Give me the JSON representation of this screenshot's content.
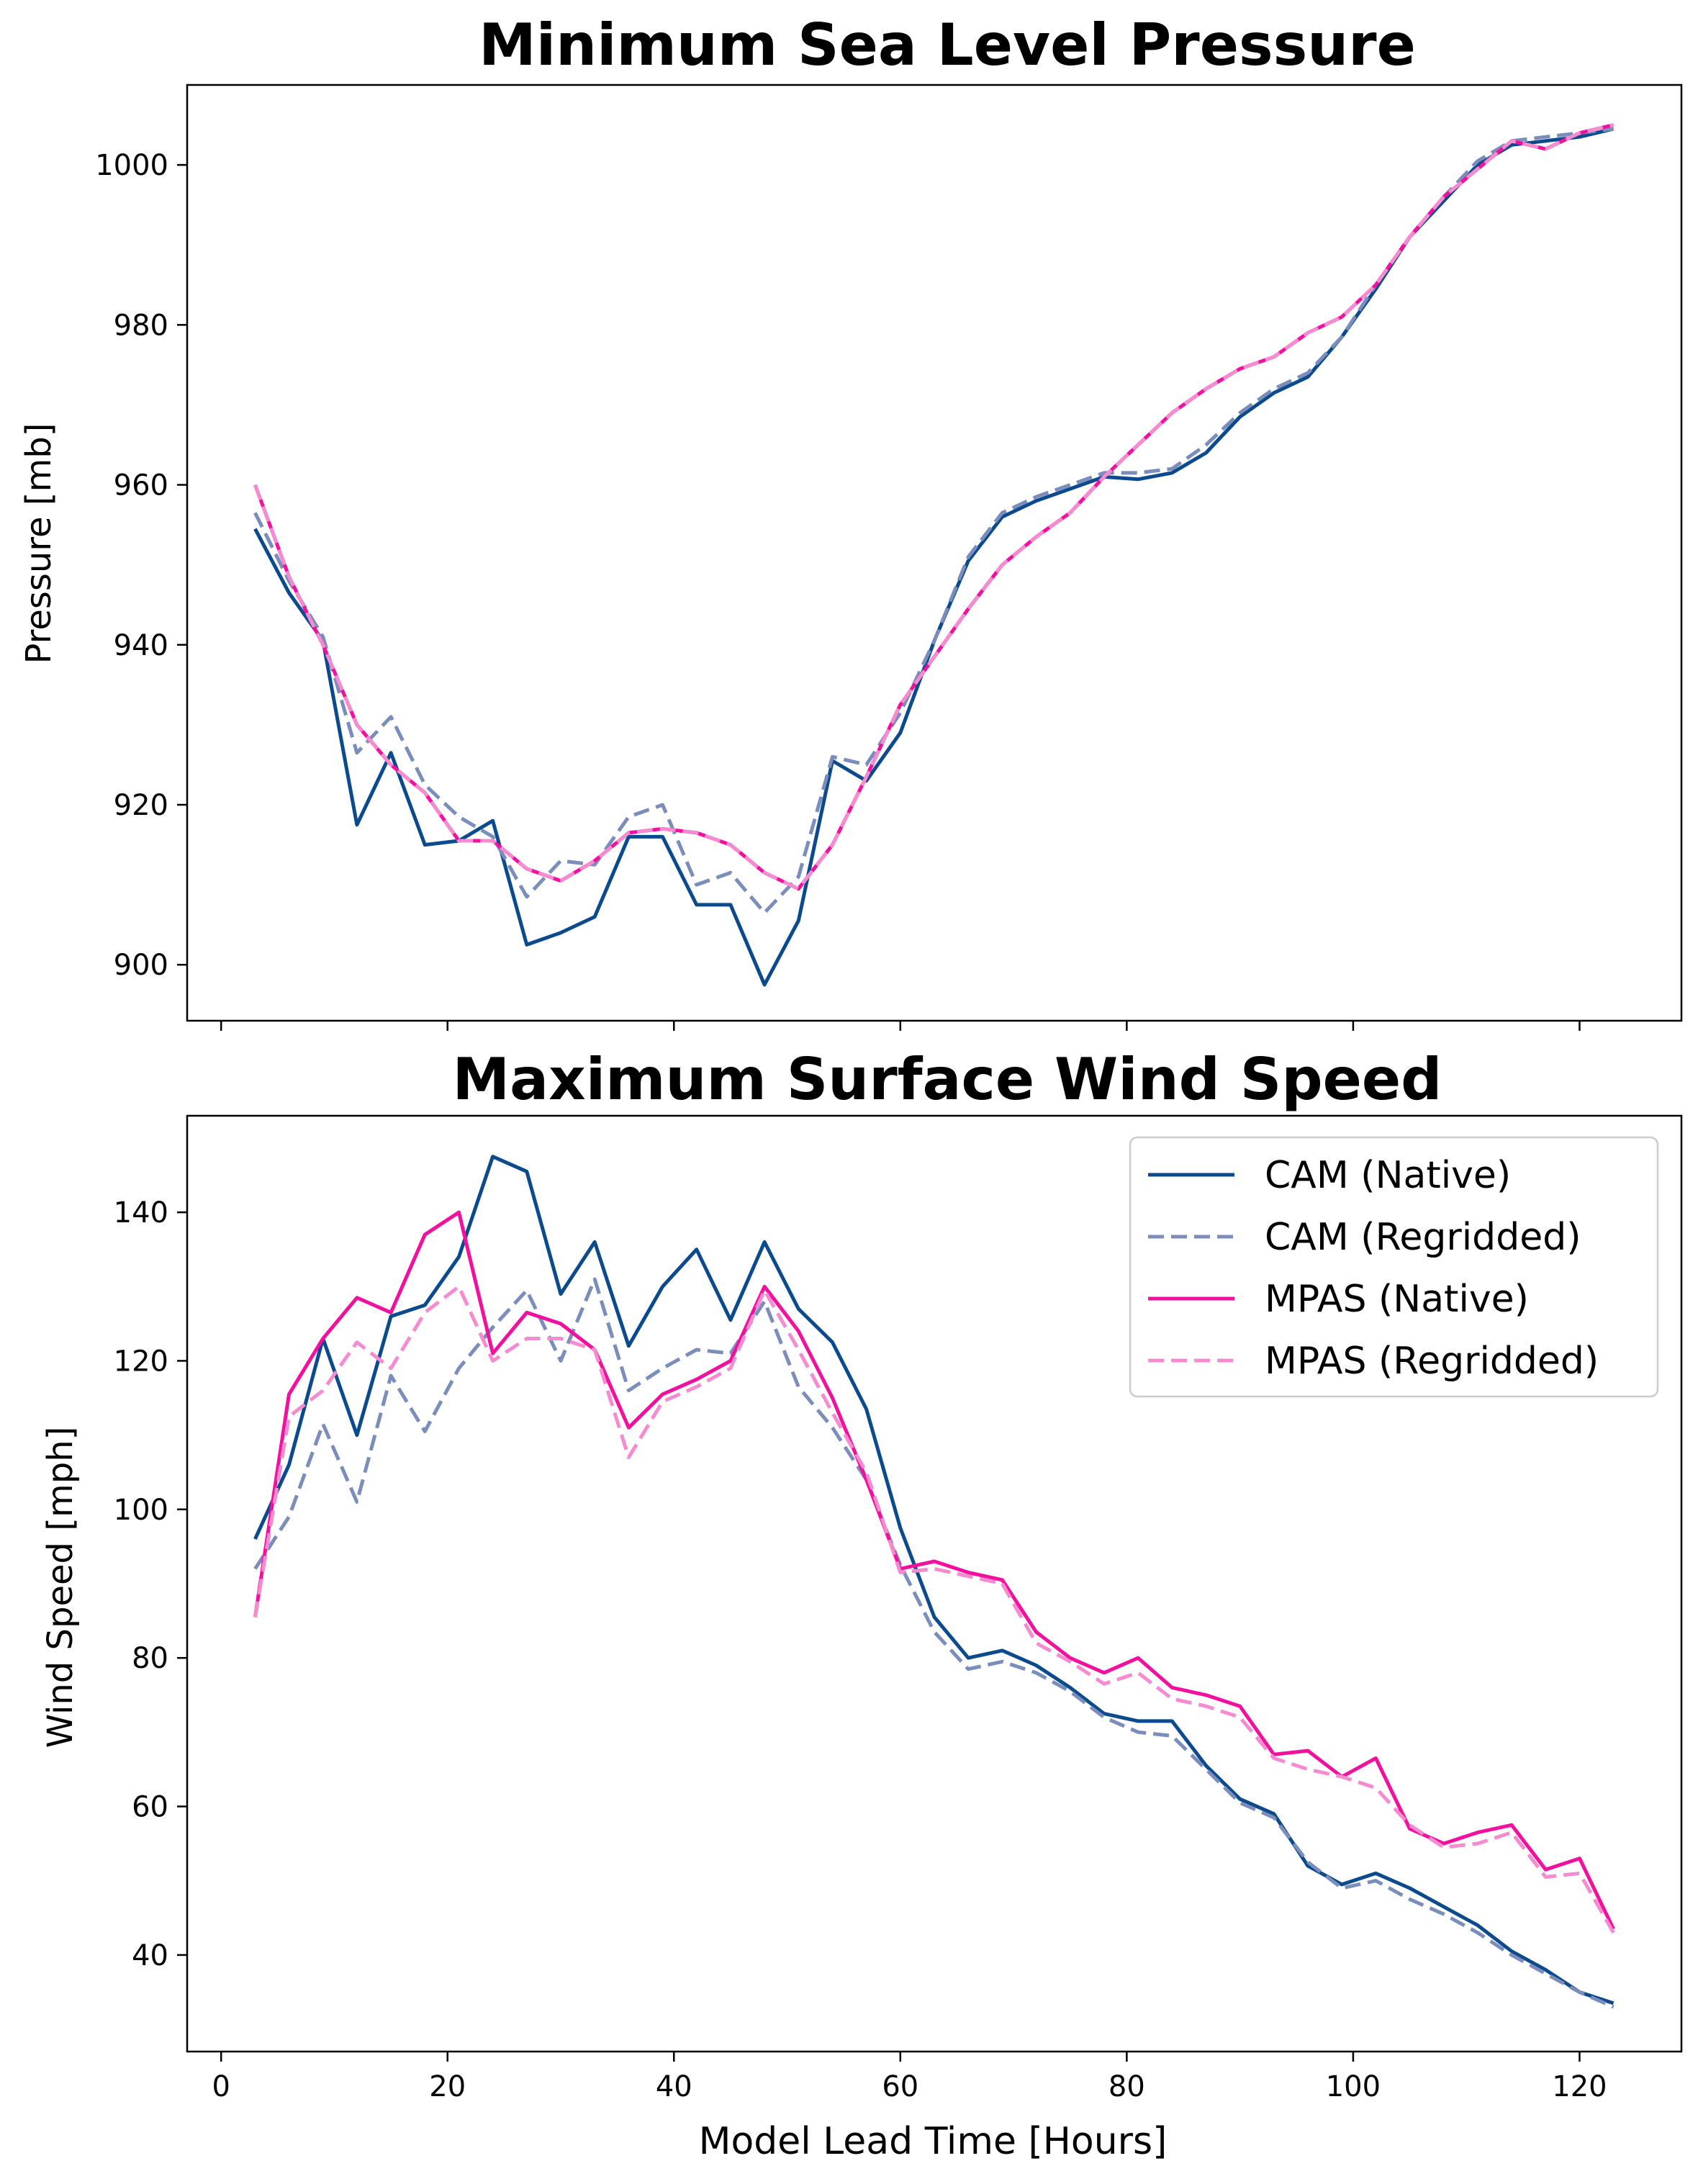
{
  "colors": {
    "cam_native": "#0b4a8c",
    "cam_regridded": "#7a8dbb",
    "mpas_native": "#f2109f",
    "mpas_regridded": "#f58bd0"
  },
  "chart_data": [
    {
      "type": "line",
      "title": "Minimum Sea Level Pressure",
      "xlabel": "",
      "ylabel": "Pressure [mb]",
      "xlim": [
        -3,
        129
      ],
      "ylim": [
        893,
        1010
      ],
      "grid": false,
      "x_ticks": [
        0,
        20,
        40,
        60,
        80,
        100,
        120
      ],
      "y_ticks": [
        900,
        920,
        940,
        960,
        980,
        1000
      ],
      "y_tick_labels": [
        "900",
        "920",
        "940",
        "960",
        "980",
        "1000"
      ],
      "x": [
        3,
        6,
        9,
        12,
        15,
        18,
        21,
        24,
        27,
        30,
        33,
        36,
        39,
        42,
        45,
        48,
        51,
        54,
        57,
        60,
        63,
        66,
        69,
        72,
        75,
        78,
        81,
        84,
        87,
        90,
        93,
        96,
        99,
        102,
        105,
        108,
        111,
        114,
        117,
        120,
        123
      ],
      "series": [
        {
          "name": "CAM (Native)",
          "style": "solid",
          "color_key": "cam_native",
          "values": [
            954.5,
            946.5,
            940.5,
            917.5,
            926.5,
            915,
            915.5,
            918,
            902.5,
            904,
            906,
            916,
            916,
            907.5,
            907.5,
            897.5,
            905.5,
            925.5,
            923,
            929,
            940.5,
            950.5,
            956,
            958,
            959.5,
            961,
            960.7,
            961.5,
            964,
            968.5,
            971.5,
            973.5,
            978.5,
            984.5,
            991,
            995.5,
            1000,
            1002.5,
            1003,
            1003.5,
            1004.5
          ]
        },
        {
          "name": "CAM (Regridded)",
          "style": "dashed",
          "color_key": "cam_regridded",
          "values": [
            956.5,
            948,
            941,
            926.5,
            931,
            922.5,
            918.5,
            916,
            908.5,
            913,
            912.5,
            918.5,
            920,
            910,
            911.5,
            906.5,
            911,
            926,
            925,
            931.5,
            940.5,
            951,
            956.5,
            958.5,
            960,
            961.5,
            961.5,
            962,
            965,
            969,
            972,
            974,
            978.5,
            985,
            991,
            996,
            1000.5,
            1003,
            1003.5,
            1004,
            1004.5
          ]
        },
        {
          "name": "MPAS (Native)",
          "style": "solid",
          "color_key": "mpas_native",
          "values": [
            960,
            948.5,
            940,
            930,
            925,
            921.5,
            915.5,
            915.5,
            912,
            910.5,
            913,
            916.5,
            917,
            916.5,
            915,
            911.5,
            909.5,
            915,
            923.5,
            932.5,
            938.5,
            944.5,
            950,
            953.5,
            956.5,
            961,
            965,
            969,
            972,
            974.5,
            976,
            979,
            981,
            985,
            991,
            996,
            999.5,
            1003,
            1002,
            1004,
            1005
          ]
        },
        {
          "name": "MPAS (Regridded)",
          "style": "dashed",
          "color_key": "mpas_regridded",
          "values": [
            960,
            948.5,
            940,
            930,
            925,
            921.5,
            915.5,
            915.5,
            912,
            910.5,
            913,
            916.5,
            917,
            916.5,
            915,
            911.5,
            909.5,
            915,
            923.5,
            932.5,
            938.5,
            944.5,
            950,
            953.5,
            956.5,
            961,
            965,
            969,
            972,
            974.5,
            976,
            979,
            981,
            985,
            991,
            996,
            999.5,
            1003,
            1002,
            1004,
            1005
          ]
        }
      ]
    },
    {
      "type": "line",
      "title": "Maximum Surface Wind Speed",
      "xlabel": "Model Lead Time [Hours]",
      "ylabel": "Wind Speed [mph]",
      "xlim": [
        -3,
        129
      ],
      "ylim": [
        27,
        153
      ],
      "grid": false,
      "legend": "top-right",
      "x_ticks": [
        0,
        20,
        40,
        60,
        80,
        100,
        120
      ],
      "x_tick_labels": [
        "0",
        "20",
        "40",
        "60",
        "80",
        "100",
        "120"
      ],
      "y_ticks": [
        40,
        60,
        80,
        100,
        120,
        140
      ],
      "y_tick_labels": [
        "40",
        "60",
        "80",
        "100",
        "120",
        "140"
      ],
      "x": [
        3,
        6,
        9,
        12,
        15,
        18,
        21,
        24,
        27,
        30,
        33,
        36,
        39,
        42,
        45,
        48,
        51,
        54,
        57,
        60,
        63,
        66,
        69,
        72,
        75,
        78,
        81,
        84,
        87,
        90,
        93,
        96,
        99,
        102,
        105,
        108,
        111,
        114,
        117,
        120,
        123
      ],
      "series": [
        {
          "name": "CAM (Native)",
          "style": "solid",
          "color_key": "cam_native",
          "values": [
            96,
            106,
            123,
            110,
            126,
            127.5,
            134,
            147.5,
            145.5,
            129,
            136,
            122,
            130,
            135,
            125.5,
            136,
            127,
            122.5,
            113.5,
            97.5,
            85.5,
            80,
            81,
            79,
            76,
            72.5,
            71.5,
            71.5,
            65.5,
            61,
            59,
            52,
            49.5,
            51,
            49,
            46.5,
            44,
            40.5,
            38,
            35,
            33.5
          ]
        },
        {
          "name": "CAM (Regridded)",
          "style": "dashed",
          "color_key": "cam_regridded",
          "values": [
            92,
            99,
            111.5,
            101,
            118,
            110.5,
            119,
            124.5,
            129.5,
            120,
            131,
            116,
            119,
            121.5,
            121,
            128,
            116.5,
            111,
            104,
            92.5,
            83.5,
            78.5,
            79.5,
            78,
            75.5,
            72,
            70,
            69.5,
            65,
            60.5,
            58.5,
            52.5,
            49,
            50,
            47.5,
            45.5,
            43,
            40,
            37.5,
            35,
            33
          ]
        },
        {
          "name": "MPAS (Native)",
          "style": "solid",
          "color_key": "mpas_native",
          "values": [
            85.5,
            115.5,
            123,
            128.5,
            126.5,
            137,
            140,
            121,
            126.5,
            125,
            121.5,
            111,
            115.5,
            117.5,
            120,
            130,
            124,
            115,
            104,
            92,
            93,
            91.5,
            90.5,
            83.5,
            80,
            78,
            80,
            76,
            75,
            73.5,
            67,
            67.5,
            64,
            66.5,
            57,
            55,
            56.5,
            57.5,
            51.5,
            53,
            43.5
          ]
        },
        {
          "name": "MPAS (Regridded)",
          "style": "dashed",
          "color_key": "mpas_regridded",
          "values": [
            85.5,
            112.5,
            116,
            122.5,
            119,
            126.5,
            130,
            120,
            123,
            123,
            121.5,
            107,
            114.5,
            116.5,
            119,
            129.5,
            121.5,
            113,
            105,
            91.5,
            92,
            91,
            90,
            82,
            79.5,
            76.5,
            78,
            74.5,
            73.5,
            72,
            66.5,
            65,
            64,
            62.5,
            57.5,
            54.5,
            55,
            56.5,
            50.5,
            51,
            43
          ]
        }
      ]
    }
  ]
}
